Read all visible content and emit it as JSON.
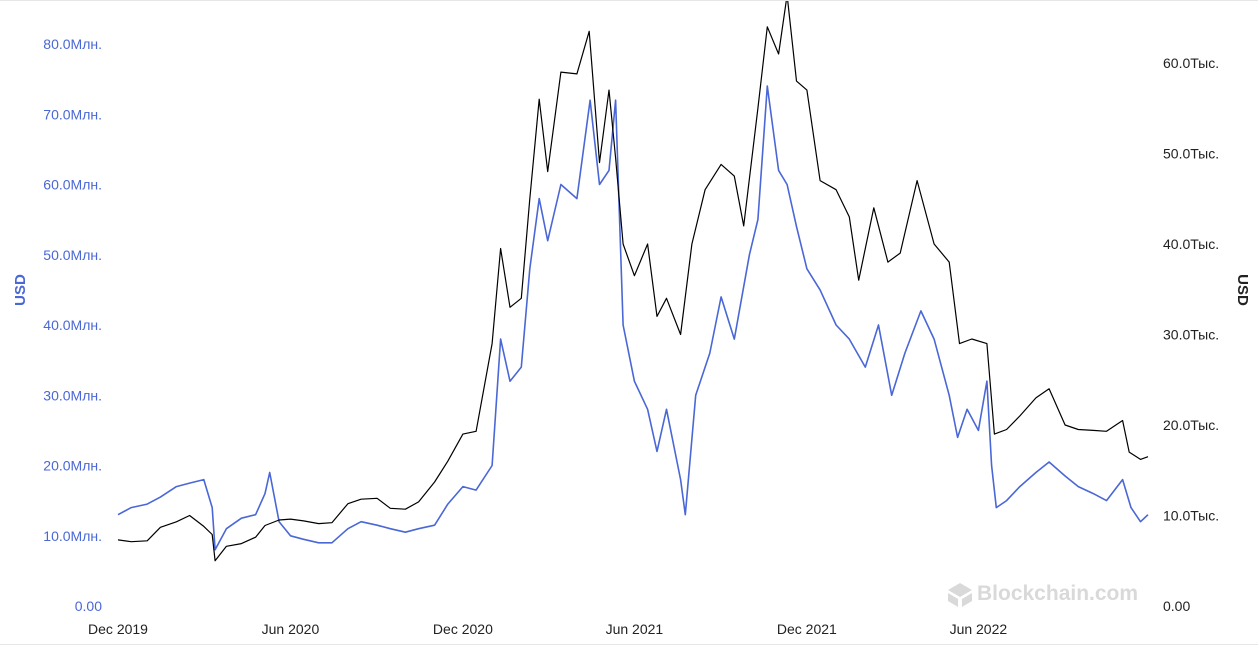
{
  "chart_data": {
    "type": "line",
    "watermark": "Blockchain.com",
    "y_left": {
      "label": "USD",
      "color": "#4a67d6",
      "range": [
        0,
        80000000
      ],
      "ticks": [
        {
          "v": 0,
          "label": "0.00"
        },
        {
          "v": 10000000,
          "label": "10.0Млн."
        },
        {
          "v": 20000000,
          "label": "20.0Млн."
        },
        {
          "v": 30000000,
          "label": "30.0Млн."
        },
        {
          "v": 40000000,
          "label": "40.0Млн."
        },
        {
          "v": 50000000,
          "label": "50.0Млн."
        },
        {
          "v": 60000000,
          "label": "60.0Млн."
        },
        {
          "v": 70000000,
          "label": "70.0Млн."
        },
        {
          "v": 80000000,
          "label": "80.0Млн."
        }
      ]
    },
    "y_right": {
      "label": "USD",
      "color": "#000000",
      "range": [
        0,
        65000
      ],
      "ticks": [
        {
          "v": 0,
          "label": "0.00"
        },
        {
          "v": 10000,
          "label": "10.0Тыс."
        },
        {
          "v": 20000,
          "label": "20.0Тыс."
        },
        {
          "v": 30000,
          "label": "30.0Тыс."
        },
        {
          "v": 40000,
          "label": "40.0Тыс."
        },
        {
          "v": 50000,
          "label": "50.0Тыс."
        },
        {
          "v": 60000,
          "label": "60.0Тыс."
        }
      ]
    },
    "x_axis": {
      "ticks": [
        {
          "date": "2019-12-01",
          "label": "Dec 2019"
        },
        {
          "date": "2020-06-01",
          "label": "Jun 2020"
        },
        {
          "date": "2020-12-01",
          "label": "Dec 2020"
        },
        {
          "date": "2021-06-01",
          "label": "Jun 2021"
        },
        {
          "date": "2021-12-01",
          "label": "Dec 2021"
        },
        {
          "date": "2022-06-01",
          "label": "Jun 2022"
        }
      ]
    },
    "series": [
      {
        "axis": "left",
        "color": "#4a67d6",
        "points": [
          [
            "2019-12-01",
            13000000
          ],
          [
            "2019-12-15",
            14000000
          ],
          [
            "2020-01-01",
            14500000
          ],
          [
            "2020-01-15",
            15500000
          ],
          [
            "2020-02-01",
            17000000
          ],
          [
            "2020-02-15",
            17500000
          ],
          [
            "2020-03-01",
            18000000
          ],
          [
            "2020-03-10",
            14000000
          ],
          [
            "2020-03-13",
            8000000
          ],
          [
            "2020-03-25",
            11000000
          ],
          [
            "2020-04-10",
            12500000
          ],
          [
            "2020-04-25",
            13000000
          ],
          [
            "2020-05-05",
            16000000
          ],
          [
            "2020-05-10",
            19000000
          ],
          [
            "2020-05-20",
            12000000
          ],
          [
            "2020-06-01",
            10000000
          ],
          [
            "2020-06-15",
            9500000
          ],
          [
            "2020-07-01",
            9000000
          ],
          [
            "2020-07-15",
            9000000
          ],
          [
            "2020-08-01",
            11000000
          ],
          [
            "2020-08-15",
            12000000
          ],
          [
            "2020-09-01",
            11500000
          ],
          [
            "2020-09-15",
            11000000
          ],
          [
            "2020-10-01",
            10500000
          ],
          [
            "2020-10-15",
            11000000
          ],
          [
            "2020-11-01",
            11500000
          ],
          [
            "2020-11-15",
            14500000
          ],
          [
            "2020-12-01",
            17000000
          ],
          [
            "2020-12-15",
            16500000
          ],
          [
            "2021-01-01",
            20000000
          ],
          [
            "2021-01-10",
            38000000
          ],
          [
            "2021-01-20",
            32000000
          ],
          [
            "2021-02-01",
            34000000
          ],
          [
            "2021-02-10",
            48000000
          ],
          [
            "2021-02-20",
            58000000
          ],
          [
            "2021-03-01",
            52000000
          ],
          [
            "2021-03-15",
            60000000
          ],
          [
            "2021-04-01",
            58000000
          ],
          [
            "2021-04-15",
            72000000
          ],
          [
            "2021-04-25",
            60000000
          ],
          [
            "2021-05-05",
            62000000
          ],
          [
            "2021-05-12",
            72000000
          ],
          [
            "2021-05-20",
            40000000
          ],
          [
            "2021-06-01",
            32000000
          ],
          [
            "2021-06-15",
            28000000
          ],
          [
            "2021-06-25",
            22000000
          ],
          [
            "2021-07-05",
            28000000
          ],
          [
            "2021-07-20",
            18000000
          ],
          [
            "2021-07-25",
            13000000
          ],
          [
            "2021-08-05",
            30000000
          ],
          [
            "2021-08-20",
            36000000
          ],
          [
            "2021-09-01",
            44000000
          ],
          [
            "2021-09-15",
            38000000
          ],
          [
            "2021-10-01",
            50000000
          ],
          [
            "2021-10-10",
            55000000
          ],
          [
            "2021-10-20",
            74000000
          ],
          [
            "2021-11-01",
            62000000
          ],
          [
            "2021-11-10",
            60000000
          ],
          [
            "2021-11-20",
            54000000
          ],
          [
            "2021-12-01",
            48000000
          ],
          [
            "2021-12-15",
            45000000
          ],
          [
            "2022-01-01",
            40000000
          ],
          [
            "2022-01-15",
            38000000
          ],
          [
            "2022-02-01",
            34000000
          ],
          [
            "2022-02-15",
            40000000
          ],
          [
            "2022-03-01",
            30000000
          ],
          [
            "2022-03-15",
            36000000
          ],
          [
            "2022-04-01",
            42000000
          ],
          [
            "2022-04-15",
            38000000
          ],
          [
            "2022-05-01",
            30000000
          ],
          [
            "2022-05-10",
            24000000
          ],
          [
            "2022-05-20",
            28000000
          ],
          [
            "2022-06-01",
            25000000
          ],
          [
            "2022-06-10",
            32000000
          ],
          [
            "2022-06-15",
            20000000
          ],
          [
            "2022-06-20",
            14000000
          ],
          [
            "2022-07-01",
            15000000
          ],
          [
            "2022-07-15",
            17000000
          ],
          [
            "2022-08-01",
            19000000
          ],
          [
            "2022-08-15",
            20500000
          ],
          [
            "2022-09-01",
            18500000
          ],
          [
            "2022-09-15",
            17000000
          ],
          [
            "2022-10-01",
            16000000
          ],
          [
            "2022-10-15",
            15000000
          ],
          [
            "2022-11-01",
            18000000
          ],
          [
            "2022-11-10",
            14000000
          ],
          [
            "2022-11-20",
            12000000
          ],
          [
            "2022-11-28",
            13000000
          ]
        ]
      },
      {
        "axis": "right",
        "color": "#000000",
        "points": [
          [
            "2019-12-01",
            7300
          ],
          [
            "2019-12-15",
            7100
          ],
          [
            "2020-01-01",
            7200
          ],
          [
            "2020-01-15",
            8700
          ],
          [
            "2020-02-01",
            9300
          ],
          [
            "2020-02-15",
            10000
          ],
          [
            "2020-03-01",
            8800
          ],
          [
            "2020-03-10",
            7900
          ],
          [
            "2020-03-13",
            5000
          ],
          [
            "2020-03-25",
            6600
          ],
          [
            "2020-04-10",
            6900
          ],
          [
            "2020-04-25",
            7600
          ],
          [
            "2020-05-05",
            8900
          ],
          [
            "2020-05-20",
            9500
          ],
          [
            "2020-06-01",
            9600
          ],
          [
            "2020-06-15",
            9400
          ],
          [
            "2020-07-01",
            9100
          ],
          [
            "2020-07-15",
            9200
          ],
          [
            "2020-08-01",
            11300
          ],
          [
            "2020-08-15",
            11800
          ],
          [
            "2020-09-01",
            11900
          ],
          [
            "2020-09-15",
            10800
          ],
          [
            "2020-10-01",
            10700
          ],
          [
            "2020-10-15",
            11500
          ],
          [
            "2020-11-01",
            13700
          ],
          [
            "2020-11-15",
            16000
          ],
          [
            "2020-12-01",
            19000
          ],
          [
            "2020-12-15",
            19300
          ],
          [
            "2021-01-01",
            29000
          ],
          [
            "2021-01-10",
            39500
          ],
          [
            "2021-01-20",
            33000
          ],
          [
            "2021-02-01",
            34000
          ],
          [
            "2021-02-10",
            45000
          ],
          [
            "2021-02-20",
            56000
          ],
          [
            "2021-03-01",
            48000
          ],
          [
            "2021-03-15",
            59000
          ],
          [
            "2021-04-01",
            58800
          ],
          [
            "2021-04-14",
            63500
          ],
          [
            "2021-04-25",
            49000
          ],
          [
            "2021-05-05",
            57000
          ],
          [
            "2021-05-12",
            49500
          ],
          [
            "2021-05-20",
            40000
          ],
          [
            "2021-06-01",
            36500
          ],
          [
            "2021-06-15",
            40000
          ],
          [
            "2021-06-25",
            32000
          ],
          [
            "2021-07-05",
            34000
          ],
          [
            "2021-07-20",
            30000
          ],
          [
            "2021-08-01",
            40000
          ],
          [
            "2021-08-15",
            46000
          ],
          [
            "2021-09-01",
            48800
          ],
          [
            "2021-09-15",
            47500
          ],
          [
            "2021-09-25",
            42000
          ],
          [
            "2021-10-10",
            55000
          ],
          [
            "2021-10-20",
            64000
          ],
          [
            "2021-11-01",
            61000
          ],
          [
            "2021-11-10",
            67500
          ],
          [
            "2021-11-20",
            58000
          ],
          [
            "2021-12-01",
            57000
          ],
          [
            "2021-12-15",
            47000
          ],
          [
            "2022-01-01",
            46000
          ],
          [
            "2022-01-15",
            43000
          ],
          [
            "2022-01-25",
            36000
          ],
          [
            "2022-02-10",
            44000
          ],
          [
            "2022-02-25",
            38000
          ],
          [
            "2022-03-10",
            39000
          ],
          [
            "2022-03-28",
            47000
          ],
          [
            "2022-04-15",
            40000
          ],
          [
            "2022-05-01",
            38000
          ],
          [
            "2022-05-12",
            29000
          ],
          [
            "2022-05-25",
            29500
          ],
          [
            "2022-06-10",
            29000
          ],
          [
            "2022-06-18",
            19000
          ],
          [
            "2022-07-01",
            19500
          ],
          [
            "2022-07-15",
            21000
          ],
          [
            "2022-08-01",
            23000
          ],
          [
            "2022-08-15",
            24000
          ],
          [
            "2022-09-01",
            20000
          ],
          [
            "2022-09-15",
            19500
          ],
          [
            "2022-10-01",
            19400
          ],
          [
            "2022-10-15",
            19300
          ],
          [
            "2022-11-01",
            20500
          ],
          [
            "2022-11-08",
            17000
          ],
          [
            "2022-11-20",
            16200
          ],
          [
            "2022-11-28",
            16500
          ]
        ]
      }
    ]
  }
}
